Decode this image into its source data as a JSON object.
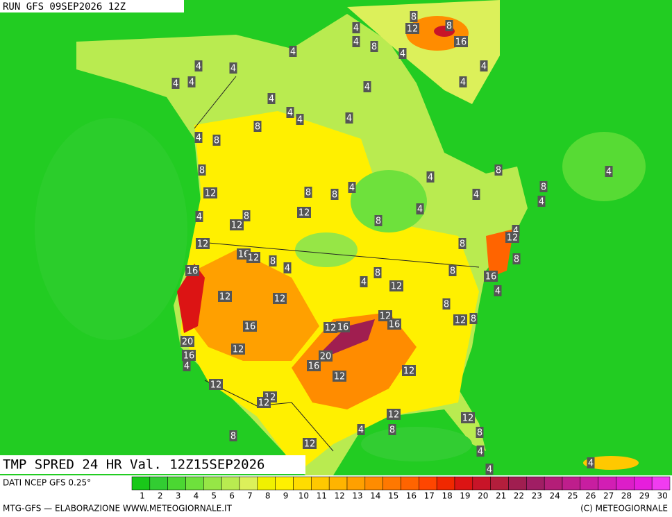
{
  "header": {
    "run": "RUN GFS 09SEP2026 12Z",
    "field": "TMP SPRED 24 HR Val. 12Z15SEP2026",
    "source": "DATI NCEP GFS 0.25°"
  },
  "contour_labels": [
    8,
    12,
    8,
    16,
    4,
    4,
    8,
    4,
    4,
    4,
    4,
    4,
    4,
    4,
    4,
    4,
    4,
    4,
    4,
    4,
    8,
    4,
    8,
    8,
    8,
    4,
    4,
    4,
    8,
    12,
    8,
    8,
    4,
    4,
    4,
    12,
    8,
    4,
    12,
    8,
    4,
    12,
    12,
    8,
    16,
    12,
    8,
    8,
    4,
    16,
    8,
    8,
    4,
    12,
    16,
    4,
    12,
    12,
    8,
    12,
    16,
    12,
    8,
    12,
    16,
    16,
    20,
    12,
    16,
    20,
    4,
    16,
    12,
    12,
    12,
    12,
    12,
    12,
    12,
    4,
    8,
    8,
    8,
    12,
    4,
    4,
    4
  ],
  "legend": {
    "values": [
      1,
      2,
      3,
      4,
      5,
      6,
      7,
      8,
      9,
      10,
      11,
      12,
      13,
      14,
      15,
      16,
      17,
      18,
      19,
      20,
      21,
      22,
      23,
      24,
      25,
      26,
      27,
      28,
      29,
      30
    ],
    "colors": [
      "#19c819",
      "#32cd32",
      "#4bd732",
      "#6ee13c",
      "#96e646",
      "#b9eb50",
      "#dcf05a",
      "#f0f000",
      "#fff000",
      "#ffdc00",
      "#ffc800",
      "#ffb400",
      "#ffa000",
      "#ff8c00",
      "#ff7800",
      "#ff6400",
      "#ff4600",
      "#f02800",
      "#dc1414",
      "#c81428",
      "#b41e3c",
      "#a01e50",
      "#a01e64",
      "#b41e78",
      "#be1e8c",
      "#c81ea0",
      "#d21eb4",
      "#dc1ec8",
      "#e61edc",
      "#f03cf0"
    ]
  },
  "footer": {
    "left": "MTG-GFS — ELABORAZIONE WWW.METEOGIORNALE.IT",
    "right": "(C) METEOGIORNALE"
  }
}
